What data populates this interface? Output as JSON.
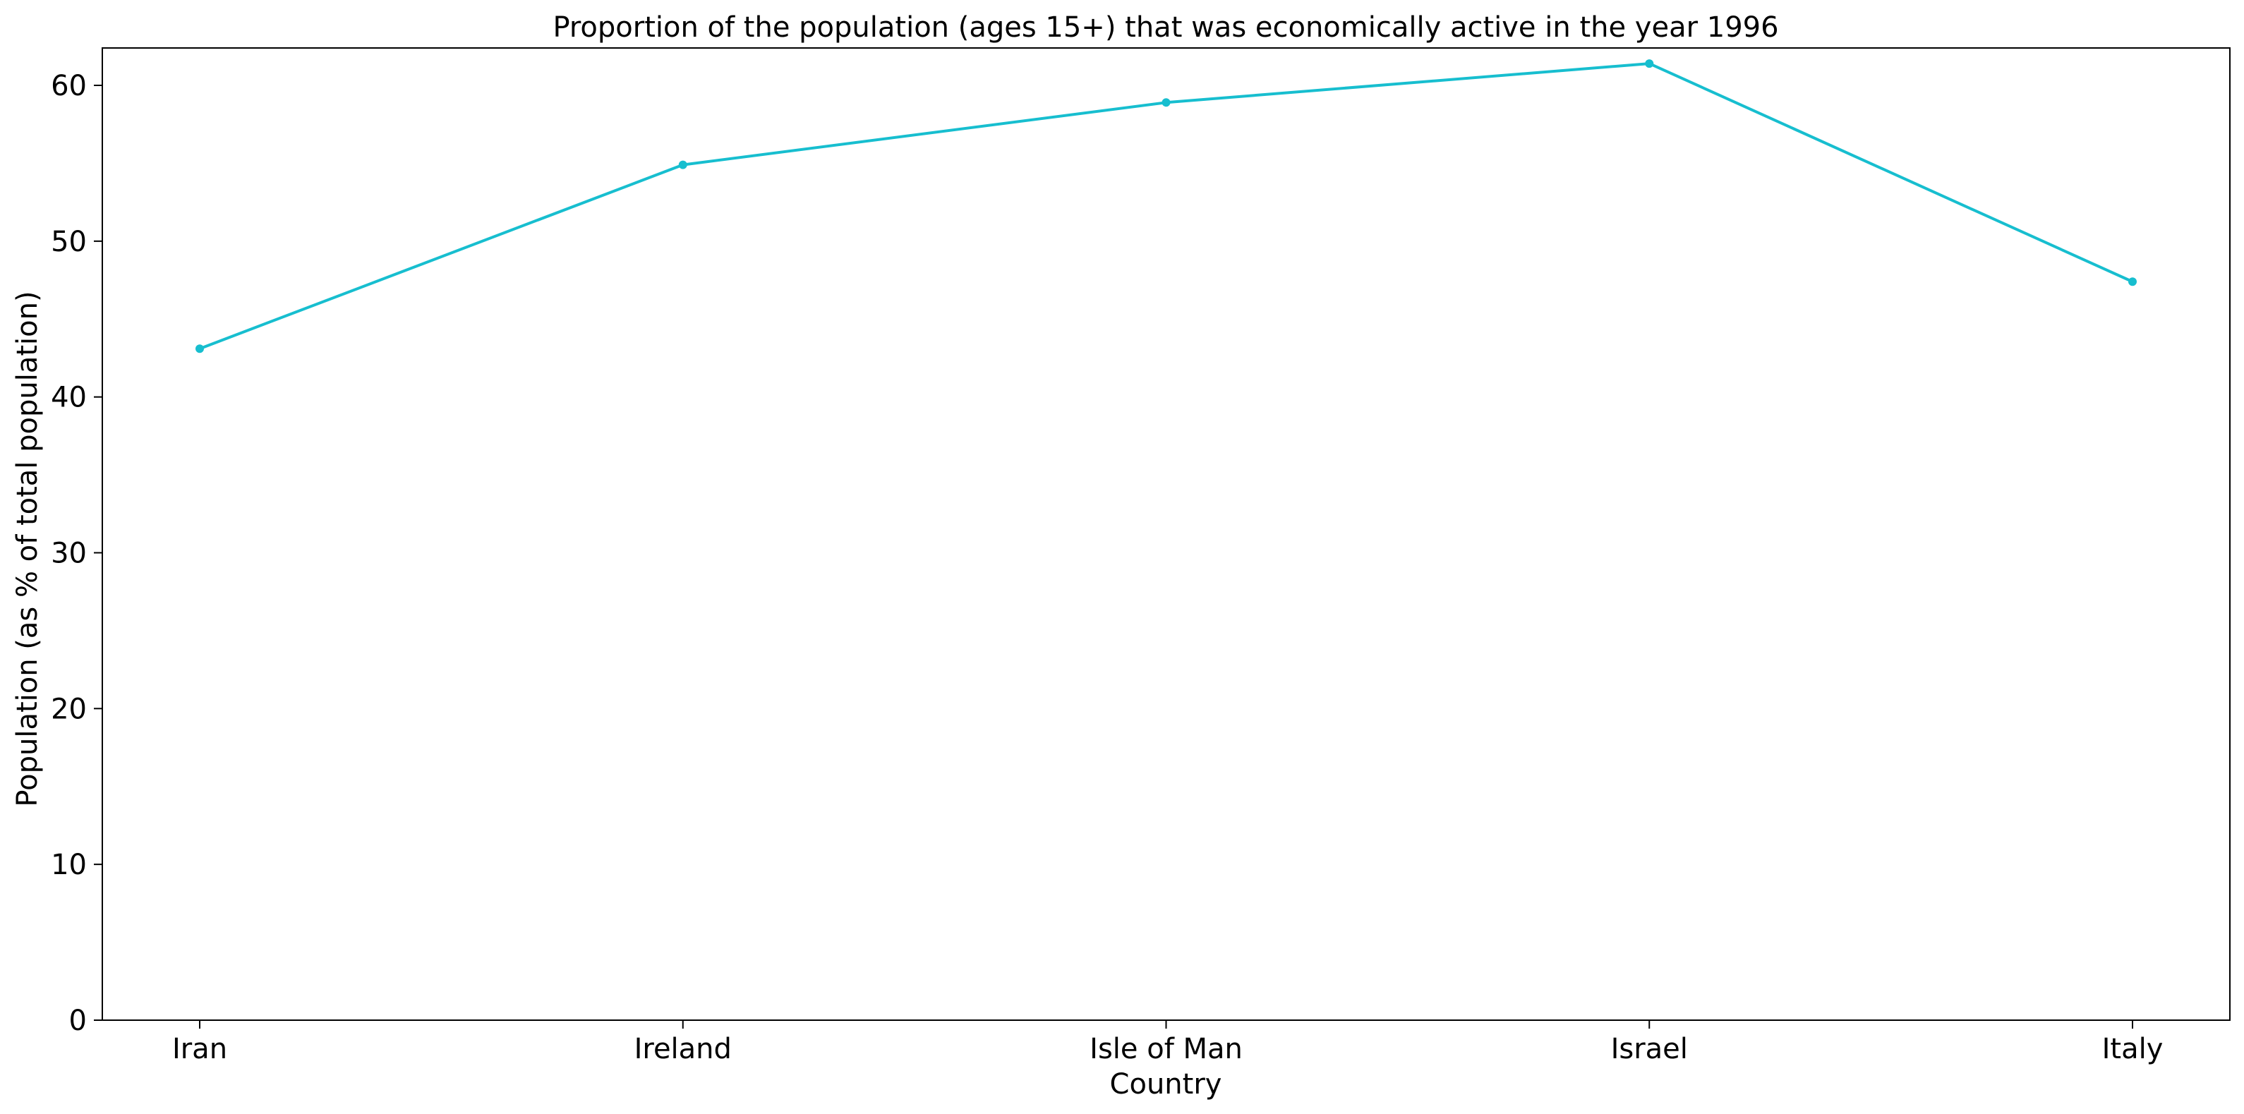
{
  "chart_data": {
    "type": "line",
    "title": "Proportion of the population (ages 15+) that was economically active in the year 1996",
    "xlabel": "Country",
    "ylabel": "Population (as % of total population)",
    "categories": [
      "Iran",
      "Ireland",
      "Isle of Man",
      "Israel",
      "Italy"
    ],
    "series": [
      {
        "values": [
          43.1,
          54.9,
          58.9,
          61.4,
          47.4
        ],
        "color": "#17becf"
      }
    ],
    "ylim": [
      0,
      62.4
    ],
    "yticks": [
      0,
      10,
      20,
      30,
      40,
      50,
      60
    ],
    "grid": false,
    "legend": "none"
  }
}
